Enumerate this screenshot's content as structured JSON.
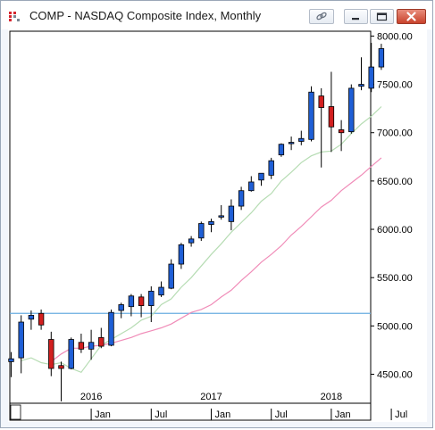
{
  "window": {
    "title": "COMP - NASDAQ Composite Index, Monthly",
    "icons": [
      "app-logo-icon",
      "link-icon",
      "minimize-icon",
      "restore-icon",
      "close-icon"
    ]
  },
  "chart_data": {
    "type": "candlestick",
    "title": "COMP - NASDAQ Composite Index, Monthly",
    "xlabel": "",
    "ylabel": "",
    "ylim": [
      4200,
      8050
    ],
    "y_ticks": [
      "8000.00",
      "7500.00",
      "7000.00",
      "6500.00",
      "6000.00",
      "5500.00",
      "5000.00",
      "4500.00"
    ],
    "y_tick_values": [
      8000,
      7500,
      7000,
      6500,
      6000,
      5500,
      5000,
      4500
    ],
    "x_ticks_top": [
      {
        "label": "2016",
        "month": "2016-01"
      },
      {
        "label": "2017",
        "month": "2017-01"
      },
      {
        "label": "2018",
        "month": "2018-01"
      }
    ],
    "x_ticks_bottom": [
      {
        "label": "Jan",
        "month": "2016-01"
      },
      {
        "label": "Jul",
        "month": "2016-07"
      },
      {
        "label": "Jan",
        "month": "2017-01"
      },
      {
        "label": "Jul",
        "month": "2017-07"
      },
      {
        "label": "Jan",
        "month": "2018-01"
      },
      {
        "label": "Jul",
        "month": "2018-07"
      }
    ],
    "horizontal_line": {
      "value": 5130,
      "color": "#6aaee0"
    },
    "colors": {
      "up": "#1f5fd6",
      "down": "#d21f1f",
      "ma_short": "#b6dcb3",
      "ma_long": "#f08cb8"
    },
    "candles": [
      {
        "month": "2015-05",
        "open": 4630,
        "high": 4730,
        "low": 4470,
        "close": 4660
      },
      {
        "month": "2015-06",
        "open": 4670,
        "high": 5110,
        "low": 4510,
        "close": 5040
      },
      {
        "month": "2015-07",
        "open": 5070,
        "high": 5160,
        "low": 4960,
        "close": 5110
      },
      {
        "month": "2015-08",
        "open": 5130,
        "high": 5170,
        "low": 4960,
        "close": 5010
      },
      {
        "month": "2015-09",
        "open": 4860,
        "high": 4940,
        "low": 4480,
        "close": 4560
      },
      {
        "month": "2015-10",
        "open": 4590,
        "high": 4630,
        "low": 4220,
        "close": 4560
      },
      {
        "month": "2015-11",
        "open": 4560,
        "high": 4880,
        "low": 4550,
        "close": 4860
      },
      {
        "month": "2015-12",
        "open": 4830,
        "high": 4920,
        "low": 4720,
        "close": 4760
      },
      {
        "month": "2016-01",
        "open": 4760,
        "high": 4960,
        "low": 4650,
        "close": 4830
      },
      {
        "month": "2016-02",
        "open": 4880,
        "high": 4980,
        "low": 4770,
        "close": 4790
      },
      {
        "month": "2016-03",
        "open": 4800,
        "high": 5170,
        "low": 4790,
        "close": 5140
      },
      {
        "month": "2016-04",
        "open": 5160,
        "high": 5240,
        "low": 5080,
        "close": 5220
      },
      {
        "month": "2016-05",
        "open": 5200,
        "high": 5330,
        "low": 5100,
        "close": 5310
      },
      {
        "month": "2016-06",
        "open": 5300,
        "high": 5330,
        "low": 5090,
        "close": 5210
      },
      {
        "month": "2016-07",
        "open": 5210,
        "high": 5410,
        "low": 5040,
        "close": 5360
      },
      {
        "month": "2016-08",
        "open": 5320,
        "high": 5460,
        "low": 5300,
        "close": 5400
      },
      {
        "month": "2016-09",
        "open": 5390,
        "high": 5690,
        "low": 5380,
        "close": 5640
      },
      {
        "month": "2016-10",
        "open": 5640,
        "high": 5860,
        "low": 5590,
        "close": 5840
      },
      {
        "month": "2016-11",
        "open": 5860,
        "high": 5930,
        "low": 5820,
        "close": 5900
      },
      {
        "month": "2016-12",
        "open": 5910,
        "high": 6080,
        "low": 5880,
        "close": 6060
      },
      {
        "month": "2017-01",
        "open": 6050,
        "high": 6110,
        "low": 5970,
        "close": 6080
      },
      {
        "month": "2017-02",
        "open": 6130,
        "high": 6250,
        "low": 6100,
        "close": 6140
      },
      {
        "month": "2017-03",
        "open": 6080,
        "high": 6310,
        "low": 5990,
        "close": 6240
      },
      {
        "month": "2017-04",
        "open": 6240,
        "high": 6440,
        "low": 6200,
        "close": 6400
      },
      {
        "month": "2017-05",
        "open": 6400,
        "high": 6550,
        "low": 6390,
        "close": 6490
      },
      {
        "month": "2017-06",
        "open": 6510,
        "high": 6570,
        "low": 6450,
        "close": 6580
      },
      {
        "month": "2017-07",
        "open": 6560,
        "high": 6740,
        "low": 6520,
        "close": 6710
      },
      {
        "month": "2017-08",
        "open": 6770,
        "high": 6890,
        "low": 6750,
        "close": 6880
      },
      {
        "month": "2017-09",
        "open": 6900,
        "high": 6960,
        "low": 6820,
        "close": 6900
      },
      {
        "month": "2017-10",
        "open": 6910,
        "high": 7020,
        "low": 6870,
        "close": 6940
      },
      {
        "month": "2017-11",
        "open": 6930,
        "high": 7480,
        "low": 6910,
        "close": 7420
      },
      {
        "month": "2017-12",
        "open": 7380,
        "high": 7460,
        "low": 6640,
        "close": 7260
      },
      {
        "month": "2018-01",
        "open": 7270,
        "high": 7630,
        "low": 6800,
        "close": 7060
      },
      {
        "month": "2018-02",
        "open": 7030,
        "high": 7130,
        "low": 6810,
        "close": 7000
      },
      {
        "month": "2018-03",
        "open": 7010,
        "high": 7500,
        "low": 6990,
        "close": 7460
      },
      {
        "month": "2018-04",
        "open": 7480,
        "high": 7780,
        "low": 7440,
        "close": 7500
      },
      {
        "month": "2018-05",
        "open": 7460,
        "high": 7930,
        "low": 7420,
        "close": 7680
      },
      {
        "month": "2018-06",
        "open": 7680,
        "high": 7920,
        "low": 7650,
        "close": 7870
      }
    ],
    "ma_short": [
      4640,
      4670,
      4620,
      4600,
      4620,
      4560,
      4520,
      4660,
      4800,
      4860,
      4920,
      4980,
      5060,
      5100,
      5220,
      5280,
      5400,
      5500,
      5620,
      5740,
      5850,
      5970,
      6070,
      6170,
      6290,
      6370,
      6500,
      6590,
      6690,
      6760,
      6800,
      6810,
      6880,
      6990,
      7090,
      7170,
      7270
    ],
    "ma_long": [
      4630,
      4710,
      4770,
      4770,
      4790,
      4800,
      4820,
      4850,
      4880,
      4920,
      4950,
      4980,
      5020,
      5080,
      5140,
      5170,
      5220,
      5300,
      5370,
      5470,
      5560,
      5660,
      5740,
      5830,
      5940,
      6030,
      6130,
      6230,
      6300,
      6400,
      6480,
      6560,
      6650,
      6740
    ]
  }
}
